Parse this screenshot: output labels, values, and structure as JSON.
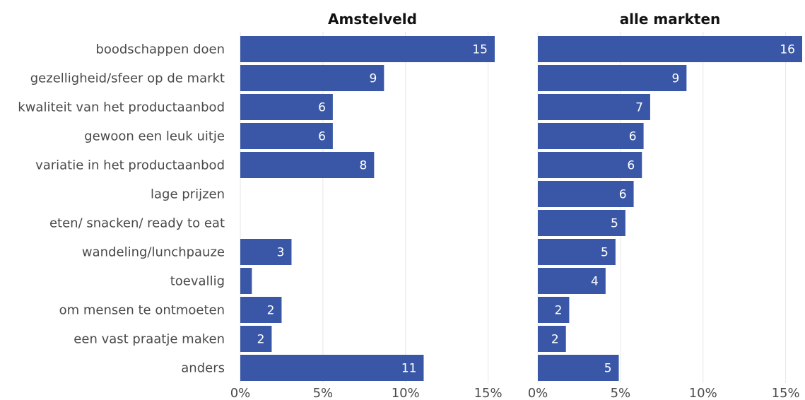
{
  "chart_data": {
    "type": "bar",
    "orientation": "horizontal",
    "categories": [
      "boodschappen doen",
      "gezelligheid/sfeer op de markt",
      "kwaliteit van het productaanbod",
      "gewoon een leuk uitje",
      "variatie in het productaanbod",
      "lage prijzen",
      "eten/ snacken/ ready to eat",
      "wandeling/lunchpauze",
      "toevallig",
      "om mensen te ontmoeten",
      "een vast praatje maken",
      "anders"
    ],
    "bar_color": "#3957a6",
    "grid": true,
    "xlim": [
      0,
      16
    ],
    "xticks": [
      0,
      5,
      10,
      15
    ],
    "xtick_labels": [
      "0%",
      "5%",
      "10%",
      "15%"
    ],
    "panels": [
      {
        "title": "Amstelveld",
        "values": [
          15.4,
          8.7,
          5.6,
          5.6,
          8.1,
          null,
          null,
          3.1,
          0.7,
          2.5,
          1.9,
          11.1
        ],
        "labels": [
          "15",
          "9",
          "6",
          "6",
          "8",
          "",
          "",
          "3",
          "",
          "2",
          "2",
          "11"
        ]
      },
      {
        "title": "alle markten",
        "values": [
          16.0,
          9.0,
          6.8,
          6.4,
          6.3,
          5.8,
          5.3,
          4.7,
          4.1,
          1.9,
          1.7,
          4.9
        ],
        "labels": [
          "16",
          "9",
          "7",
          "6",
          "6",
          "6",
          "5",
          "5",
          "4",
          "2",
          "2",
          "5"
        ]
      }
    ]
  }
}
